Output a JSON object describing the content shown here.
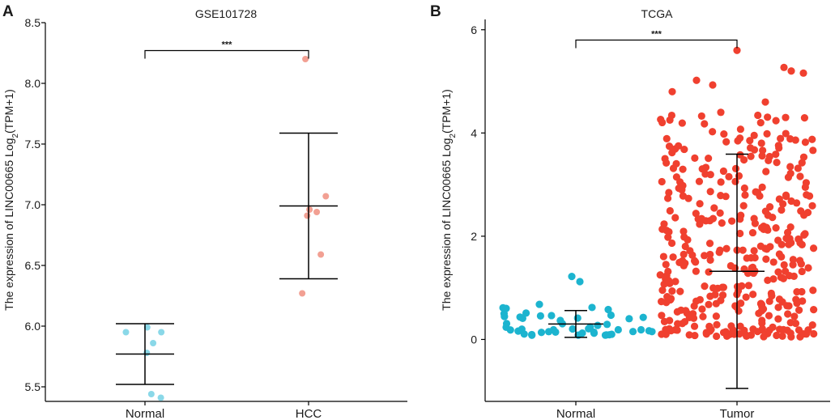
{
  "chart_data": [
    {
      "panel": "A",
      "type": "scatter",
      "title": "GSE101728",
      "xlabel": "",
      "ylabel_parts": [
        "The expression of LINC00665 Log",
        "2",
        "(TPM+1)"
      ],
      "categories": [
        "Normal",
        "HCC"
      ],
      "ylim": [
        5.38,
        8.5
      ],
      "yticks": [
        5.5,
        6.0,
        6.5,
        7.0,
        7.5,
        8.0,
        8.5
      ],
      "ytick_labels": [
        "5.5",
        "6.0",
        "6.5",
        "7.0",
        "7.5",
        "8.0",
        "8.5"
      ],
      "colors": {
        "Normal": "#8ad8e8",
        "HCC": "#f2a093"
      },
      "series": [
        {
          "name": "Normal",
          "points": [
            [
              -0.42,
              5.95
            ],
            [
              0.05,
              5.99
            ],
            [
              0.18,
              5.86
            ],
            [
              0.36,
              5.95
            ],
            [
              0.04,
              5.78
            ],
            [
              0.14,
              5.44
            ],
            [
              0.35,
              5.41
            ]
          ],
          "mean": 5.77,
          "sd_low": 5.52,
          "sd_high": 6.02
        },
        {
          "name": "HCC",
          "points": [
            [
              -0.07,
              8.2
            ],
            [
              0.38,
              7.07
            ],
            [
              0.02,
              6.96
            ],
            [
              0.18,
              6.94
            ],
            [
              -0.03,
              6.91
            ],
            [
              0.27,
              6.59
            ],
            [
              -0.14,
              6.27
            ]
          ],
          "mean": 6.99,
          "sd_low": 6.39,
          "sd_high": 7.59
        }
      ],
      "significance": {
        "from": "Normal",
        "to": "HCC",
        "label": "***",
        "y": 8.27
      }
    },
    {
      "panel": "B",
      "type": "scatter",
      "title": "TCGA",
      "xlabel": "",
      "ylabel_parts": [
        "The expression of LINC00665 Log",
        "2",
        "(TPM+1)"
      ],
      "categories": [
        "Normal",
        "Tumor"
      ],
      "ylim": [
        -1.2,
        6.2
      ],
      "yticks": [
        0,
        2,
        4,
        6
      ],
      "ytick_labels": [
        "0",
        "2",
        "4",
        "6"
      ],
      "colors": {
        "Normal": "#1cb4cf",
        "Tumor": "#f0402f"
      },
      "series": [
        {
          "name": "Normal",
          "n": 50,
          "seed": 11,
          "distribution": {
            "base": 0.08,
            "spread": 0.55,
            "shape": 1.6
          },
          "fixed_points": [
            [
              -0.05,
              1.22
            ],
            [
              0.05,
              1.12
            ],
            [
              -0.45,
              0.68
            ],
            [
              0.2,
              0.62
            ],
            [
              0.4,
              0.58
            ]
          ],
          "mean": 0.3,
          "sd_low": 0.04,
          "sd_high": 0.56
        },
        {
          "name": "Tumor",
          "n": 374,
          "seed": 23,
          "distribution": {
            "base": 0.05,
            "spread": 4.3,
            "shape": 1.35
          },
          "fixed_points": [
            [
              0.0,
              5.6
            ],
            [
              0.58,
              5.27
            ],
            [
              0.67,
              5.2
            ],
            [
              0.82,
              5.16
            ],
            [
              -0.8,
              4.8
            ],
            [
              -0.5,
              5.02
            ],
            [
              -0.3,
              4.93
            ],
            [
              0.35,
              4.6
            ],
            [
              -0.2,
              4.4
            ],
            [
              0.6,
              4.3
            ]
          ],
          "mean": 1.32,
          "sd_low": -0.95,
          "sd_high": 3.59
        }
      ],
      "significance": {
        "from": "Normal",
        "to": "Tumor",
        "label": "***",
        "y": 5.8
      }
    }
  ]
}
